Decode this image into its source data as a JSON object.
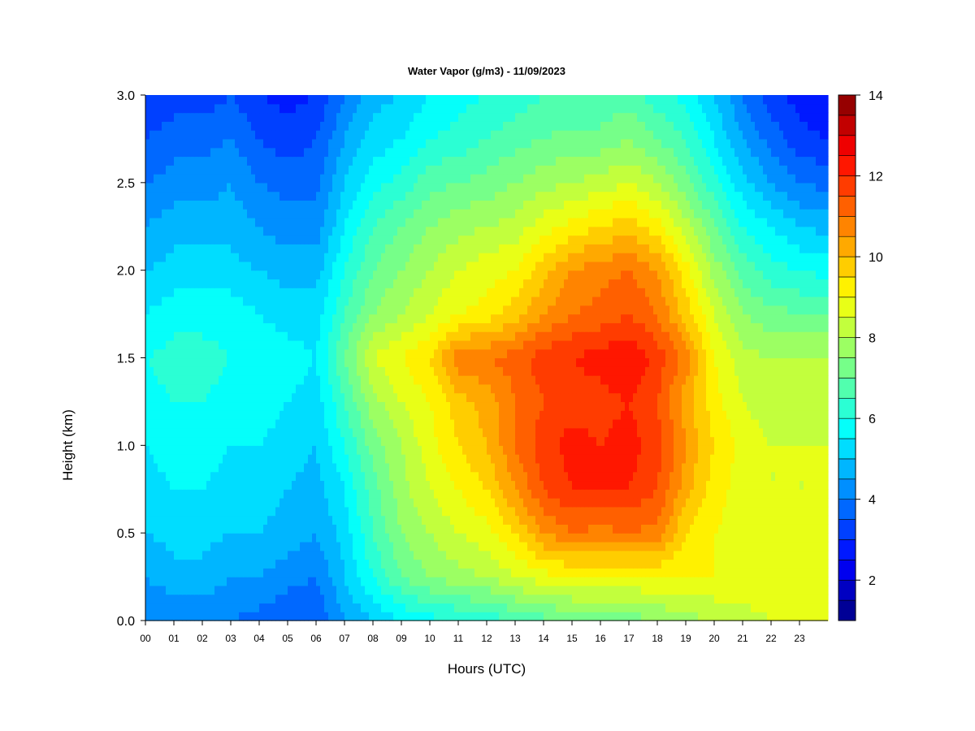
{
  "chart_data": {
    "type": "heatmap",
    "title": "Water Vapor (g/m3) - 11/09/2023",
    "xlabel": "Hours (UTC)",
    "ylabel": "Height (km)",
    "xlim": [
      0,
      24
    ],
    "ylim": [
      0,
      3.0
    ],
    "x_tick_labels": [
      "00",
      "01",
      "02",
      "03",
      "04",
      "05",
      "06",
      "07",
      "08",
      "09",
      "10",
      "11",
      "12",
      "13",
      "14",
      "15",
      "16",
      "17",
      "18",
      "19",
      "20",
      "21",
      "22",
      "23"
    ],
    "y_tick_labels": [
      "0.0",
      "0.5",
      "1.0",
      "1.5",
      "2.0",
      "2.5",
      "3.0"
    ],
    "y_tick_values": [
      0,
      0.5,
      1.0,
      1.5,
      2.0,
      2.5,
      3.0
    ],
    "heights_km": [
      0.0,
      0.25,
      0.5,
      0.75,
      1.0,
      1.25,
      1.5,
      1.75,
      2.0,
      2.25,
      2.5,
      2.75,
      3.0
    ],
    "hours": [
      0,
      1,
      2,
      3,
      4,
      5,
      6,
      7,
      8,
      9,
      10,
      11,
      12,
      13,
      14,
      15,
      16,
      17,
      18,
      19,
      20,
      21,
      22,
      23,
      24
    ],
    "values": [
      [
        4.0,
        4.0,
        4.2,
        4.0,
        3.8,
        3.5,
        3.5,
        4.5,
        5.0,
        5.5,
        5.8,
        6.0,
        6.2,
        6.5,
        6.8,
        7.0,
        7.2,
        7.2,
        7.5,
        7.8,
        8.0,
        8.2,
        8.5,
        8.5,
        8.5
      ],
      [
        4.5,
        4.8,
        4.8,
        4.5,
        4.5,
        4.2,
        4.0,
        5.0,
        6.0,
        7.0,
        7.5,
        7.8,
        8.0,
        8.5,
        8.8,
        9.0,
        9.0,
        9.0,
        9.0,
        9.0,
        9.0,
        9.0,
        9.0,
        9.0,
        8.8
      ],
      [
        5.0,
        5.2,
        5.2,
        5.0,
        5.0,
        4.8,
        4.5,
        5.2,
        6.5,
        7.5,
        8.0,
        8.5,
        8.8,
        9.5,
        10.5,
        11.0,
        10.8,
        11.0,
        10.8,
        9.5,
        9.0,
        8.8,
        8.8,
        8.8,
        8.5
      ],
      [
        5.2,
        5.5,
        5.5,
        5.2,
        5.2,
        5.0,
        4.8,
        5.5,
        6.8,
        7.8,
        8.5,
        9.0,
        9.5,
        10.5,
        11.5,
        12.0,
        12.0,
        12.0,
        11.5,
        10.2,
        9.2,
        8.8,
        8.5,
        8.5,
        8.5
      ],
      [
        5.5,
        5.8,
        5.8,
        5.5,
        5.5,
        5.2,
        5.0,
        6.0,
        7.2,
        8.0,
        8.8,
        9.5,
        10.0,
        11.0,
        11.8,
        12.2,
        12.0,
        12.2,
        11.8,
        10.5,
        9.5,
        8.8,
        8.5,
        8.5,
        8.5
      ],
      [
        5.8,
        6.0,
        6.0,
        5.8,
        5.8,
        5.5,
        5.2,
        6.5,
        7.8,
        8.5,
        9.0,
        9.8,
        10.2,
        11.0,
        11.5,
        11.8,
        11.8,
        12.0,
        11.5,
        10.2,
        9.2,
        8.5,
        8.2,
        8.2,
        8.2
      ],
      [
        6.0,
        6.2,
        6.2,
        6.0,
        6.0,
        5.8,
        5.5,
        7.0,
        8.5,
        9.0,
        9.5,
        10.8,
        11.0,
        11.2,
        11.8,
        12.0,
        12.2,
        12.5,
        11.8,
        10.8,
        9.0,
        8.2,
        8.0,
        8.0,
        8.0
      ],
      [
        5.5,
        5.8,
        5.8,
        5.8,
        5.5,
        5.2,
        5.2,
        6.5,
        7.5,
        8.0,
        8.5,
        9.0,
        9.2,
        9.8,
        10.5,
        11.0,
        11.2,
        11.5,
        11.0,
        9.8,
        8.5,
        7.5,
        7.2,
        7.0,
        7.0
      ],
      [
        5.0,
        5.2,
        5.2,
        5.2,
        5.0,
        4.8,
        4.8,
        6.0,
        7.0,
        7.5,
        8.0,
        8.5,
        8.8,
        9.0,
        9.8,
        10.5,
        10.8,
        11.0,
        10.5,
        9.2,
        7.8,
        6.8,
        6.2,
        6.0,
        5.8
      ],
      [
        4.5,
        4.8,
        4.8,
        4.8,
        4.5,
        4.2,
        4.2,
        5.5,
        6.5,
        7.0,
        7.5,
        7.8,
        8.0,
        8.2,
        8.8,
        9.2,
        9.5,
        9.8,
        9.2,
        8.2,
        7.0,
        6.0,
        5.5,
        5.0,
        4.8
      ],
      [
        4.0,
        4.2,
        4.2,
        4.5,
        4.0,
        3.8,
        3.8,
        5.0,
        5.8,
        6.2,
        6.8,
        7.0,
        7.2,
        7.5,
        7.8,
        8.0,
        8.2,
        8.5,
        8.0,
        7.2,
        6.2,
        5.2,
        4.5,
        4.0,
        3.8
      ],
      [
        3.5,
        3.8,
        3.8,
        4.0,
        3.5,
        3.2,
        3.5,
        4.5,
        5.2,
        5.5,
        6.0,
        6.2,
        6.5,
        6.8,
        7.0,
        7.2,
        7.2,
        7.5,
        7.0,
        6.5,
        5.5,
        4.5,
        3.8,
        3.2,
        3.0
      ],
      [
        3.0,
        3.2,
        3.2,
        3.5,
        3.0,
        2.8,
        3.0,
        4.0,
        4.8,
        5.0,
        5.5,
        5.8,
        6.0,
        6.2,
        6.5,
        6.5,
        6.5,
        6.8,
        6.2,
        5.8,
        5.0,
        4.0,
        3.2,
        2.8,
        2.5
      ]
    ],
    "colorbar": {
      "min": 1,
      "max": 14,
      "step": 0.5,
      "tick_labels": [
        "2",
        "4",
        "6",
        "8",
        "10",
        "12",
        "14"
      ],
      "tick_values": [
        2,
        4,
        6,
        8,
        10,
        12,
        14
      ]
    }
  }
}
